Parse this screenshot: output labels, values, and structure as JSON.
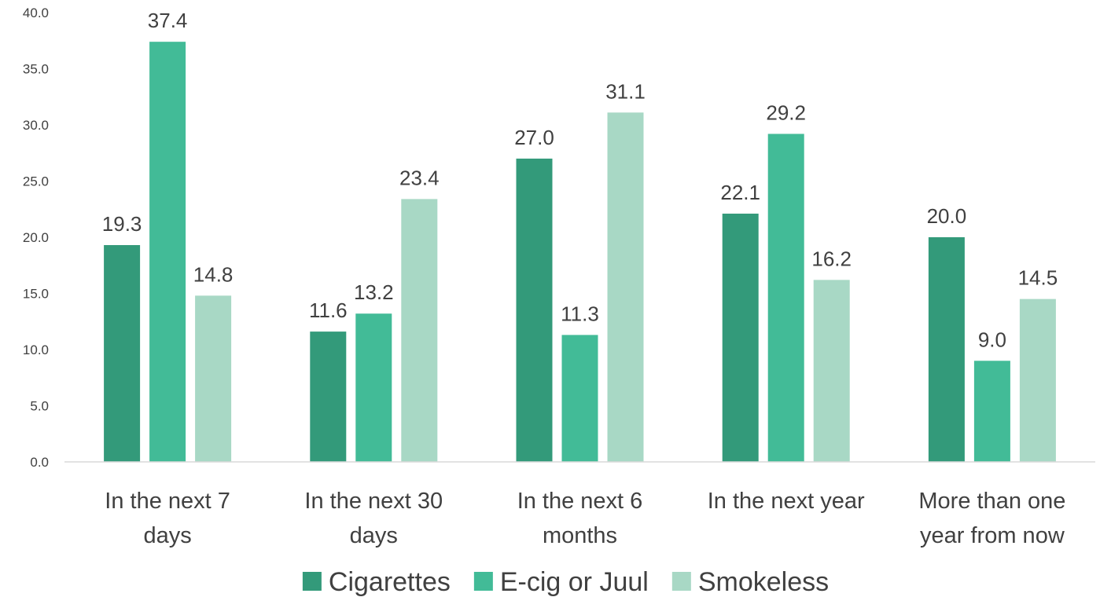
{
  "chart_data": {
    "type": "bar",
    "title": "",
    "xlabel": "",
    "ylabel": "",
    "ylim": [
      0,
      40
    ],
    "yticks": [
      "0.0",
      "5.0",
      "10.0",
      "15.0",
      "20.0",
      "25.0",
      "30.0",
      "35.0",
      "40.0"
    ],
    "grid": false,
    "legend_position": "bottom",
    "categories": [
      [
        "In the next 7",
        "days"
      ],
      [
        "In the next 30",
        "days"
      ],
      [
        "In the next 6",
        "months"
      ],
      [
        "In the next year"
      ],
      [
        "More than one",
        "year from now"
      ]
    ],
    "series": [
      {
        "name": "Cigarettes",
        "color": "#339a7a",
        "values": [
          19.3,
          11.6,
          27.0,
          22.1,
          20.0
        ],
        "labels": [
          "19.3",
          "11.6",
          "27.0",
          "22.1",
          "20.0"
        ]
      },
      {
        "name": "E-cig or Juul",
        "color": "#42bb97",
        "values": [
          37.4,
          13.2,
          11.3,
          29.2,
          9.0
        ],
        "labels": [
          "37.4",
          "13.2",
          "11.3",
          "29.2",
          "9.0"
        ]
      },
      {
        "name": "Smokeless",
        "color": "#a8d8c5",
        "values": [
          14.8,
          23.4,
          31.1,
          16.2,
          14.5
        ],
        "labels": [
          "14.8",
          "23.4",
          "31.1",
          "16.2",
          "14.5"
        ]
      }
    ]
  }
}
